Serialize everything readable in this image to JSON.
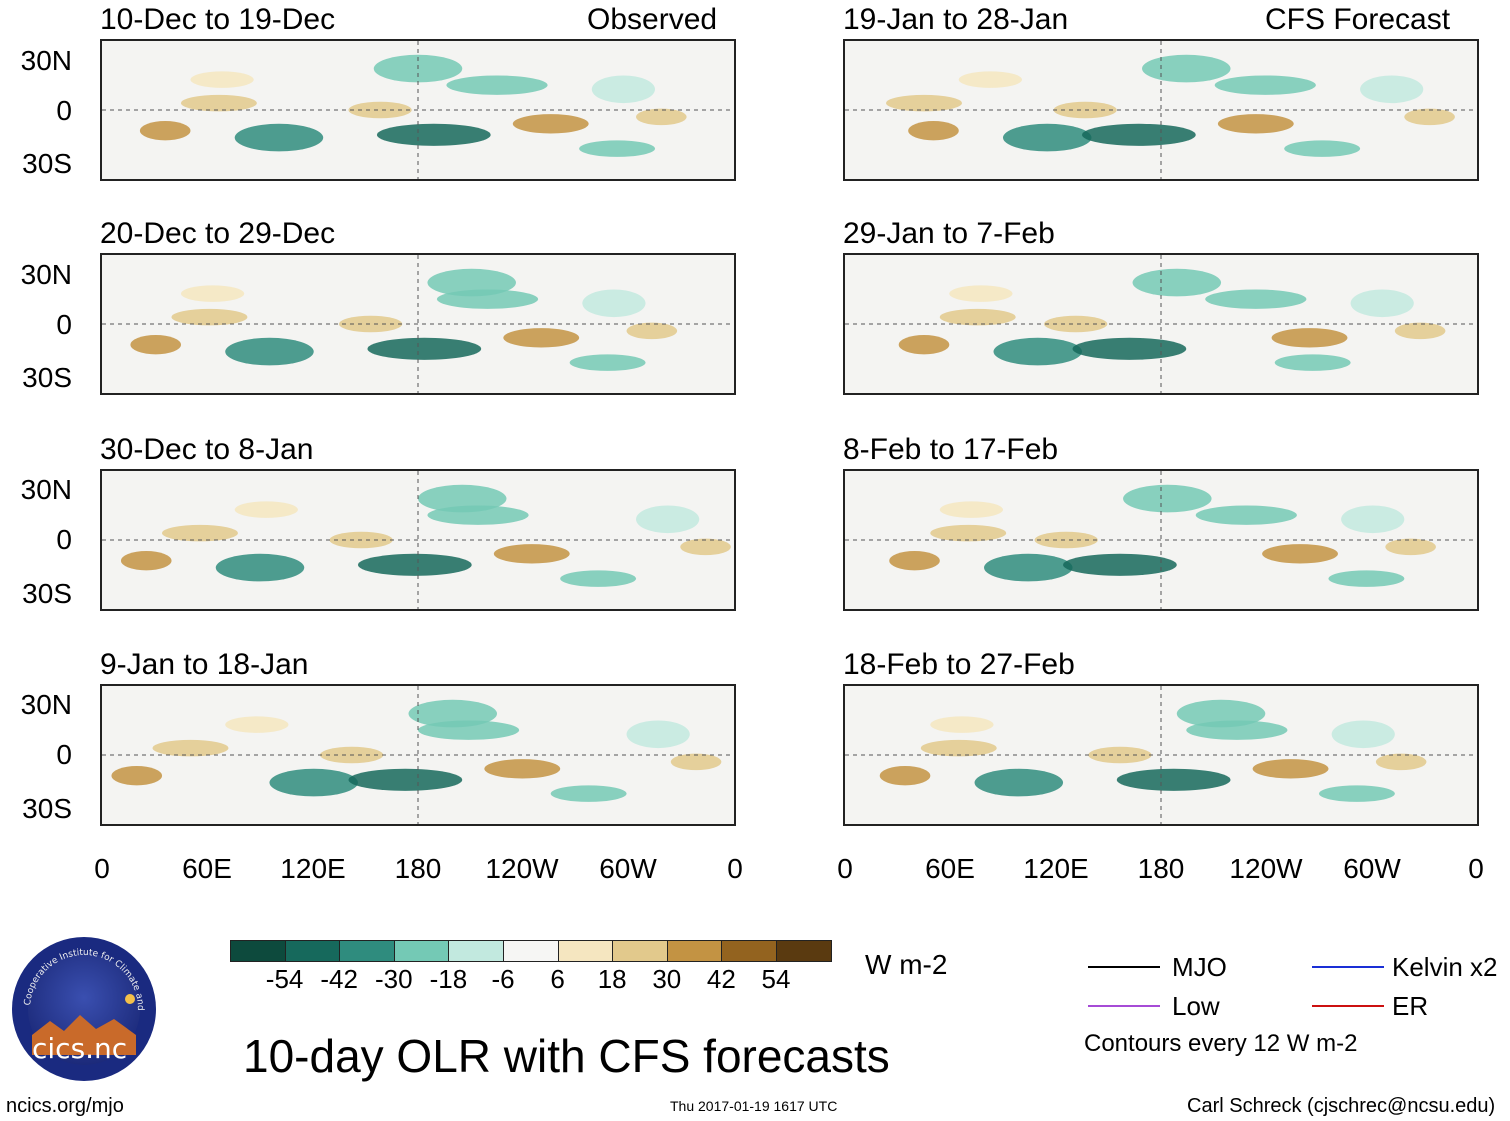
{
  "title": "10-day OLR with CFS forecasts",
  "observed_label": "Observed",
  "forecast_label": "CFS Forecast",
  "panels_left": [
    {
      "period": "10-Dec to 19-Dec"
    },
    {
      "period": "20-Dec to 29-Dec"
    },
    {
      "period": "30-Dec to 8-Jan"
    },
    {
      "period": "9-Jan to 18-Jan"
    }
  ],
  "panels_right": [
    {
      "period": "19-Jan to 28-Jan"
    },
    {
      "period": "29-Jan to 7-Feb"
    },
    {
      "period": "8-Feb to 17-Feb"
    },
    {
      "period": "18-Feb to 27-Feb"
    }
  ],
  "lat_labels": [
    "30N",
    "0",
    "30S"
  ],
  "lon_labels": [
    "0",
    "60E",
    "120E",
    "180",
    "120W",
    "60W",
    "0"
  ],
  "colorbar": {
    "colors": [
      "#0d4a3d",
      "#16695c",
      "#2f8c7e",
      "#74c9b5",
      "#c2e9df",
      "#f6f6f4",
      "#f5e6c0",
      "#e2c98c",
      "#c39343",
      "#93631f",
      "#5a3a10"
    ],
    "ticks": [
      "-54",
      "-42",
      "-30",
      "-18",
      "-6",
      "6",
      "18",
      "30",
      "42",
      "54"
    ],
    "units": "W m-2"
  },
  "legend": [
    {
      "label": "MJO",
      "color": "#000000"
    },
    {
      "label": "Kelvin x2",
      "color": "#1a2fd6"
    },
    {
      "label": "Low",
      "color": "#a64bd6"
    },
    {
      "label": "ER",
      "color": "#cc1010"
    }
  ],
  "contour_note": "Contours every 12 W m-2",
  "logo_text": "cics.nc",
  "logo_ring_text": "Cooperative Institute for Climate and Satellites",
  "website": "ncics.org/mjo",
  "timestamp": "Thu 2017-01-19 1617 UTC",
  "author": "Carl Schreck (cjschrec@ncsu.edu)"
}
